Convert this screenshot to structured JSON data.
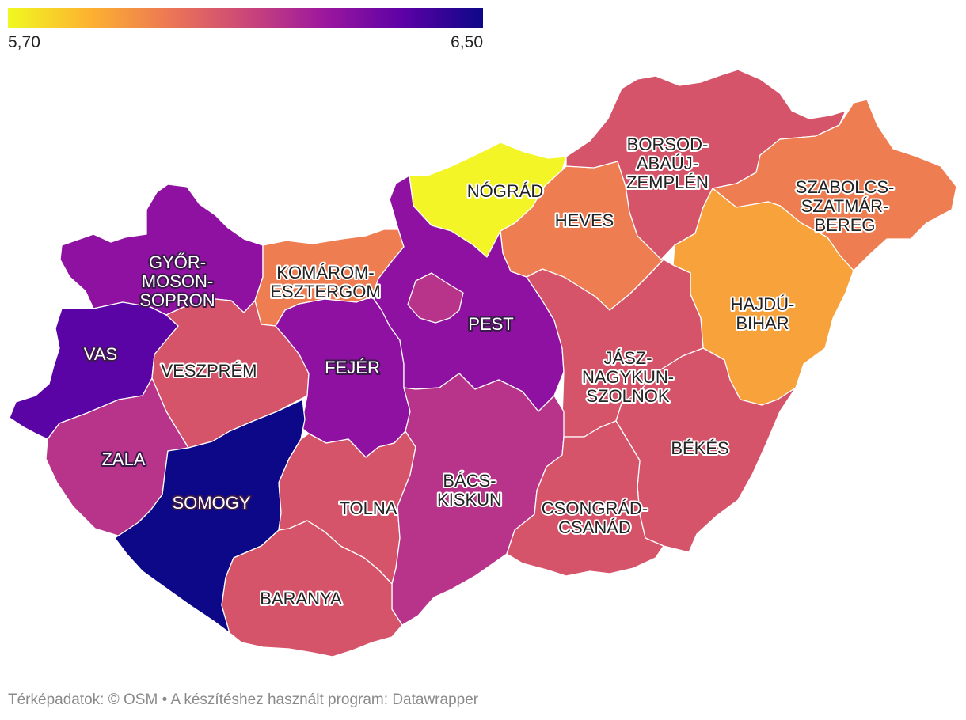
{
  "legend": {
    "min_label": "5,70",
    "max_label": "6,50",
    "colors": [
      "#f0f921",
      "#fdb42f",
      "#ed7953",
      "#cc4778",
      "#9c179e",
      "#5c01a6",
      "#0d0887"
    ]
  },
  "counties": {
    "gyor": {
      "label_lines": [
        "GYŐR-",
        "MOSON-",
        "SOPRON"
      ],
      "color": "#8f11a1"
    },
    "komarom": {
      "label_lines": [
        "KOMÁROM-",
        "ESZTERGOM"
      ],
      "color": "#ef7d52"
    },
    "nograd": {
      "label_lines": [
        "NÓGRÁD"
      ],
      "color": "#f3f527"
    },
    "heves": {
      "label_lines": [
        "HEVES"
      ],
      "color": "#ef7d52"
    },
    "borsod": {
      "label_lines": [
        "BORSOD-",
        "ABAÚJ-",
        "ZEMPLÉN"
      ],
      "color": "#d6546a"
    },
    "szabolcs": {
      "label_lines": [
        "SZABOLCS-",
        "SZATMÁR-",
        "BEREG"
      ],
      "color": "#ef7d52"
    },
    "hajdu": {
      "label_lines": [
        "HAJDÚ-",
        "BIHAR"
      ],
      "color": "#f8a23c"
    },
    "vas": {
      "label_lines": [
        "VAS"
      ],
      "color": "#5b04a5"
    },
    "veszprem": {
      "label_lines": [
        "VESZPRÉM"
      ],
      "color": "#d6546a"
    },
    "fejer": {
      "label_lines": [
        "FEJÉR"
      ],
      "color": "#8f11a1"
    },
    "pest": {
      "label_lines": [
        "PEST"
      ],
      "color": "#8f11a1"
    },
    "jasz": {
      "label_lines": [
        "JÁSZ-",
        "NAGYKUN-",
        "SZOLNOK"
      ],
      "color": "#d6546a"
    },
    "zala": {
      "label_lines": [
        "ZALA"
      ],
      "color": "#b8348a"
    },
    "somogy": {
      "label_lines": [
        "SOMOGY"
      ],
      "color": "#0d0887"
    },
    "tolna": {
      "label_lines": [
        "TOLNA"
      ],
      "color": "#d6546a"
    },
    "bacs": {
      "label_lines": [
        "BÁCS-",
        "KISKUN"
      ],
      "color": "#b8348a"
    },
    "bekes": {
      "label_lines": [
        "BÉKÉS"
      ],
      "color": "#d6546a"
    },
    "csongrad": {
      "label_lines": [
        "CSONGRÁD-",
        "CSANÁD"
      ],
      "color": "#d6546a"
    },
    "baranya": {
      "label_lines": [
        "BARANYA"
      ],
      "color": "#d6546a"
    },
    "budapest": {
      "color": "#b8348a"
    }
  },
  "footer": {
    "text": "Térképadatok: © OSM  • A készítéshez használt program: Datawrapper"
  }
}
